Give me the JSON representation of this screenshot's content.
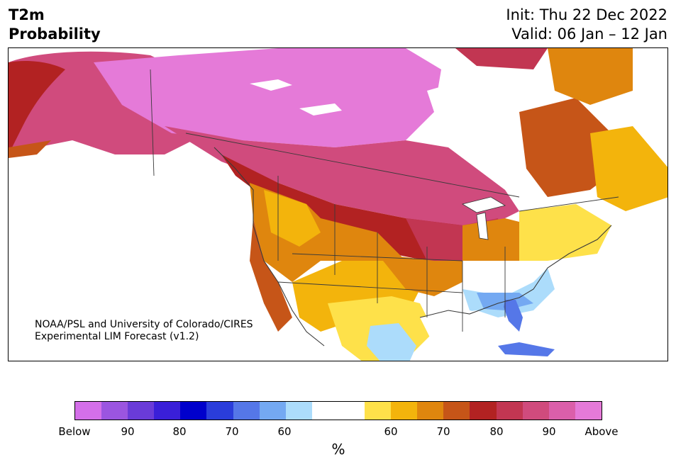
{
  "title": {
    "line1": "T2m",
    "line2": "Probability"
  },
  "timing": {
    "init": "Init: Thu 22 Dec 2022",
    "valid": "Valid: 06 Jan – 12 Jan"
  },
  "credit": {
    "line1": "NOAA/PSL and University of Colorado/CIRES",
    "line2": "Experimental LIM Forecast (v1.2)"
  },
  "colorbar": {
    "colors": [
      "#d46fe9",
      "#9b55e0",
      "#6a3bd8",
      "#3a1fd8",
      "#0000cc",
      "#2a3ddb",
      "#5577e8",
      "#74a9f2",
      "#acdcfb",
      "#ffffff",
      "#ffffff",
      "#fee14a",
      "#f3b40c",
      "#df860e",
      "#c65518",
      "#b22222",
      "#c23652",
      "#d04b7d",
      "#db5faa",
      "#e57ad8"
    ],
    "labels": [
      "Below",
      "90",
      "80",
      "70",
      "60",
      "60",
      "70",
      "80",
      "90",
      "Above"
    ],
    "unit": "%"
  },
  "regions": [
    {
      "name": "arctic-canada-above",
      "color": "#e57ad8"
    },
    {
      "name": "alaska-yukon",
      "color": "#d04b7d"
    },
    {
      "name": "northern-plains",
      "color": "#b22222"
    },
    {
      "name": "great-basin",
      "color": "#df860e"
    },
    {
      "name": "southwest",
      "color": "#f3b40c"
    },
    {
      "name": "southeast-cool",
      "color": "#74a9f2"
    },
    {
      "name": "florida-cool",
      "color": "#5577e8"
    }
  ]
}
